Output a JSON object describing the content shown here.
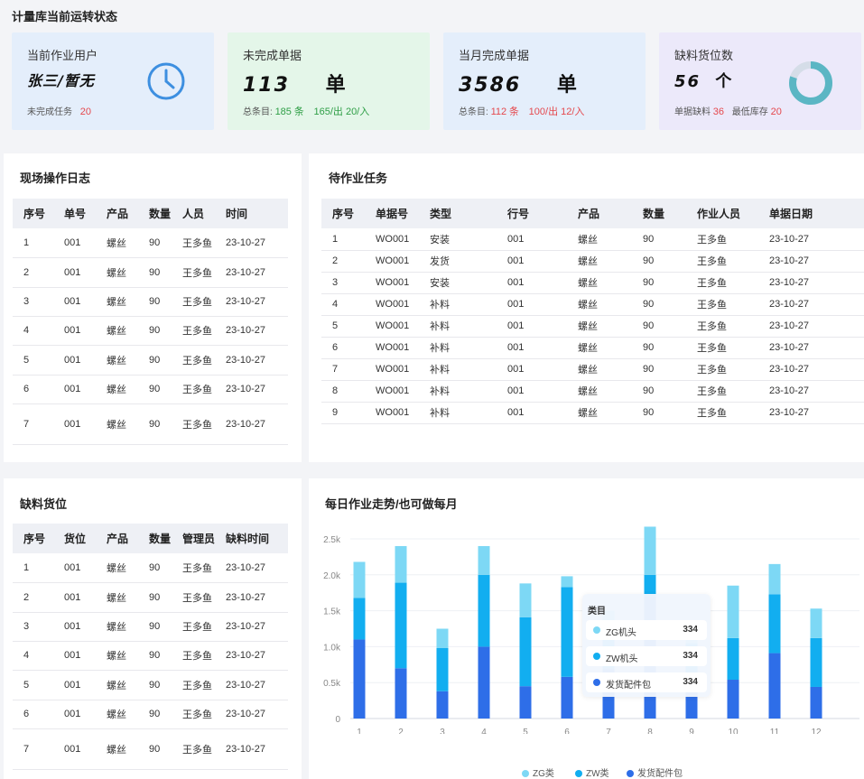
{
  "page": {
    "title": "计量库当前运转状态"
  },
  "kpis": {
    "user": {
      "title": "当前作业用户",
      "value": "张三/暂无",
      "sub_label": "未完成任务",
      "sub_value": "20",
      "icon": "clock-icon"
    },
    "pending": {
      "title": "未完成单据",
      "value": "113",
      "unit": "单",
      "sub_label": "总条目:",
      "count": "185",
      "count_unit": "条",
      "in_out": "165/出 20/入"
    },
    "monthly": {
      "title": "当月完成单据",
      "value": "3586",
      "unit": "单",
      "sub_label": "总条目:",
      "count": "112",
      "count_unit": "条",
      "in_out": "100/出 12/入"
    },
    "shortage": {
      "title": "缺料货位数",
      "value": "56",
      "unit": "个",
      "sub1_label": "单据缺料",
      "sub1_value": "36",
      "sub2_label": "最低库存",
      "sub2_value": "20",
      "ring_fraction": 0.8,
      "icon": "donut-ring-icon"
    }
  },
  "log": {
    "title": "现场操作日志",
    "headers": [
      "序号",
      "单号",
      "产品",
      "数量",
      "人员",
      "时间"
    ],
    "rows": [
      [
        "1",
        "001",
        "螺丝",
        "90",
        "王多鱼",
        "23-10-27"
      ],
      [
        "2",
        "001",
        "螺丝",
        "90",
        "王多鱼",
        "23-10-27"
      ],
      [
        "3",
        "001",
        "螺丝",
        "90",
        "王多鱼",
        "23-10-27"
      ],
      [
        "4",
        "001",
        "螺丝",
        "90",
        "王多鱼",
        "23-10-27"
      ],
      [
        "5",
        "001",
        "螺丝",
        "90",
        "王多鱼",
        "23-10-27"
      ],
      [
        "6",
        "001",
        "螺丝",
        "90",
        "王多鱼",
        "23-10-27"
      ],
      [
        "7",
        "001",
        "螺丝",
        "90",
        "王多鱼",
        "23-10-27"
      ]
    ]
  },
  "tasks": {
    "title": "待作业任务",
    "headers": [
      "序号",
      "单据号",
      "类型",
      "行号",
      "产品",
      "数量",
      "作业人员",
      "单据日期"
    ],
    "rows": [
      [
        "1",
        "WO001",
        "安装",
        "001",
        "螺丝",
        "90",
        "王多鱼",
        "23-10-27"
      ],
      [
        "2",
        "WO001",
        "发货",
        "001",
        "螺丝",
        "90",
        "王多鱼",
        "23-10-27"
      ],
      [
        "3",
        "WO001",
        "安装",
        "001",
        "螺丝",
        "90",
        "王多鱼",
        "23-10-27"
      ],
      [
        "4",
        "WO001",
        "补料",
        "001",
        "螺丝",
        "90",
        "王多鱼",
        "23-10-27"
      ],
      [
        "5",
        "WO001",
        "补料",
        "001",
        "螺丝",
        "90",
        "王多鱼",
        "23-10-27"
      ],
      [
        "6",
        "WO001",
        "补料",
        "001",
        "螺丝",
        "90",
        "王多鱼",
        "23-10-27"
      ],
      [
        "7",
        "WO001",
        "补料",
        "001",
        "螺丝",
        "90",
        "王多鱼",
        "23-10-27"
      ],
      [
        "8",
        "WO001",
        "补料",
        "001",
        "螺丝",
        "90",
        "王多鱼",
        "23-10-27"
      ],
      [
        "9",
        "WO001",
        "补料",
        "001",
        "螺丝",
        "90",
        "王多鱼",
        "23-10-27"
      ]
    ]
  },
  "shortage_table": {
    "title": "缺料货位",
    "headers": [
      "序号",
      "货位",
      "产品",
      "数量",
      "管理员",
      "缺料时间"
    ],
    "rows": [
      [
        "1",
        "001",
        "螺丝",
        "90",
        "王多鱼",
        "23-10-27"
      ],
      [
        "2",
        "001",
        "螺丝",
        "90",
        "王多鱼",
        "23-10-27"
      ],
      [
        "3",
        "001",
        "螺丝",
        "90",
        "王多鱼",
        "23-10-27"
      ],
      [
        "4",
        "001",
        "螺丝",
        "90",
        "王多鱼",
        "23-10-27"
      ],
      [
        "5",
        "001",
        "螺丝",
        "90",
        "王多鱼",
        "23-10-27"
      ],
      [
        "6",
        "001",
        "螺丝",
        "90",
        "王多鱼",
        "23-10-27"
      ],
      [
        "7",
        "001",
        "螺丝",
        "90",
        "王多鱼",
        "23-10-27"
      ]
    ]
  },
  "trend": {
    "title": "每日作业走势/也可做每月",
    "tooltip": {
      "title": "类目",
      "items": [
        {
          "name": "ZG机头",
          "value": "334",
          "color": "#7dd8f5"
        },
        {
          "name": "ZW机头",
          "value": "334",
          "color": "#12aef0"
        },
        {
          "name": "发货配件包",
          "value": "334",
          "color": "#2e6ee8"
        }
      ]
    }
  },
  "chart_data": {
    "type": "bar",
    "stacked": true,
    "categories": [
      "1",
      "2",
      "3",
      "4",
      "5",
      "6",
      "7",
      "8",
      "9",
      "10",
      "11",
      "12"
    ],
    "series": [
      {
        "name": "发货配件包",
        "color": "#2e6ee8",
        "values": [
          1100,
          700,
          380,
          1000,
          450,
          580,
          700,
          1700,
          400,
          540,
          910,
          440
        ]
      },
      {
        "name": "ZW类",
        "color": "#12aef0",
        "values": [
          580,
          1190,
          600,
          1000,
          960,
          1250,
          500,
          300,
          650,
          580,
          820,
          680
        ]
      },
      {
        "name": "ZG类",
        "color": "#7dd8f5",
        "values": [
          500,
          510,
          270,
          400,
          470,
          150,
          300,
          670,
          150,
          730,
          420,
          410
        ]
      }
    ],
    "ylim": [
      0,
      2500
    ],
    "yticks": [
      "0",
      "0.5k",
      "1.0k",
      "1.5k",
      "2.0k",
      "2.5k"
    ],
    "legend": "bottom"
  }
}
